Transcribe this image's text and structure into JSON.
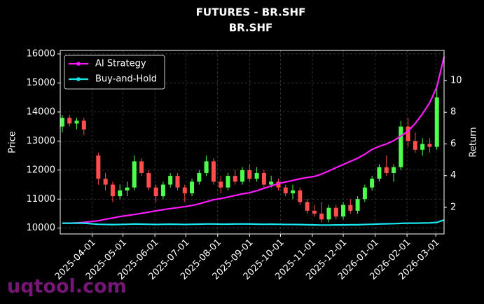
{
  "chart_data": {
    "type": "candlestick",
    "title": "FUTURES - BR.SHF",
    "subtitle": "BR.SHF",
    "ylabel": "Price",
    "y2label": "Return",
    "watermark": "uqtool.com",
    "xlim": [
      "2025-03-01",
      "2026-03-09"
    ],
    "xticks": [
      "2025-04-01",
      "2025-05-01",
      "2025-06-01",
      "2025-07-01",
      "2025-08-01",
      "2025-09-01",
      "2025-10-01",
      "2025-11-01",
      "2025-12-01",
      "2026-01-01",
      "2026-02-01",
      "2026-03-01"
    ],
    "ylim": [
      9800,
      16120
    ],
    "yticks": [
      10000,
      11000,
      12000,
      13000,
      14000,
      15000,
      16000
    ],
    "y2lim": [
      0.32,
      11.9
    ],
    "y2ticks": [
      2,
      4,
      6,
      8,
      10
    ],
    "grid": true,
    "legend": "upper-left",
    "up_color": "#4cff4c",
    "down_color": "#ff4d4d",
    "candles": {
      "dates": [
        "2025-03-03",
        "2025-03-10",
        "2025-03-17",
        "2025-03-24",
        "2025-04-07",
        "2025-04-14",
        "2025-04-21",
        "2025-04-28",
        "2025-05-05",
        "2025-05-12",
        "2025-05-19",
        "2025-05-26",
        "2025-06-02",
        "2025-06-09",
        "2025-06-16",
        "2025-06-23",
        "2025-06-30",
        "2025-07-07",
        "2025-07-14",
        "2025-07-21",
        "2025-07-28",
        "2025-08-04",
        "2025-08-11",
        "2025-08-18",
        "2025-08-25",
        "2025-09-01",
        "2025-09-08",
        "2025-09-15",
        "2025-09-22",
        "2025-09-29",
        "2025-10-06",
        "2025-10-13",
        "2025-10-20",
        "2025-10-27",
        "2025-11-03",
        "2025-11-10",
        "2025-11-17",
        "2025-11-24",
        "2025-12-01",
        "2025-12-08",
        "2025-12-15",
        "2025-12-22",
        "2025-12-29",
        "2026-01-05",
        "2026-01-12",
        "2026-01-19",
        "2026-01-26",
        "2026-02-02",
        "2026-02-09",
        "2026-02-16",
        "2026-02-23",
        "2026-03-02"
      ],
      "open": [
        13500,
        13800,
        13600,
        13700,
        12500,
        11700,
        11500,
        11100,
        11300,
        11400,
        12300,
        11900,
        11400,
        11100,
        11500,
        11800,
        11400,
        11200,
        11600,
        11900,
        12300,
        11600,
        11400,
        11800,
        11600,
        12000,
        11700,
        11900,
        11500,
        11600,
        11400,
        11200,
        11300,
        10900,
        10600,
        10500,
        10300,
        10700,
        10400,
        10800,
        10600,
        11000,
        11400,
        11700,
        12100,
        11900,
        12100,
        13500,
        13000,
        12700,
        12900,
        12800
      ],
      "high": [
        13900,
        13900,
        13800,
        13800,
        12600,
        11900,
        11600,
        11500,
        11600,
        12500,
        12400,
        12000,
        11500,
        11600,
        11900,
        11900,
        11500,
        11700,
        12000,
        12500,
        12400,
        11800,
        11900,
        12000,
        12100,
        12200,
        12100,
        12000,
        11800,
        11700,
        11500,
        11500,
        11400,
        11000,
        10800,
        10900,
        10800,
        10800,
        10900,
        11000,
        11100,
        11500,
        11800,
        12200,
        12500,
        12200,
        13700,
        13800,
        13300,
        13100,
        13100,
        14800
      ],
      "low": [
        13300,
        13500,
        13400,
        13200,
        11500,
        11300,
        10900,
        11000,
        11100,
        11300,
        11800,
        11300,
        10900,
        11000,
        11400,
        11300,
        10900,
        11100,
        11500,
        11800,
        11500,
        11200,
        11300,
        11500,
        11500,
        11600,
        11600,
        11400,
        11400,
        11300,
        11100,
        11000,
        10800,
        10500,
        10400,
        10200,
        10200,
        10300,
        10300,
        10500,
        10500,
        10900,
        11300,
        11600,
        11800,
        11600,
        12000,
        12800,
        12600,
        12500,
        12600,
        12700
      ],
      "close": [
        13800,
        13600,
        13700,
        13400,
        11700,
        11500,
        11100,
        11300,
        11400,
        12300,
        11900,
        11400,
        11100,
        11500,
        11800,
        11400,
        11200,
        11600,
        11900,
        12300,
        11600,
        11400,
        11800,
        11600,
        12000,
        11700,
        11900,
        11500,
        11600,
        11400,
        11200,
        11300,
        10900,
        10600,
        10500,
        10300,
        10700,
        10400,
        10800,
        10600,
        11000,
        11400,
        11700,
        12100,
        11900,
        12100,
        13500,
        13000,
        12700,
        12900,
        12800,
        14500
      ]
    },
    "x": [
      "2025-03-03",
      "2025-03-10",
      "2025-03-17",
      "2025-03-24",
      "2025-04-07",
      "2025-04-14",
      "2025-04-21",
      "2025-04-28",
      "2025-05-05",
      "2025-05-12",
      "2025-05-19",
      "2025-05-26",
      "2025-06-02",
      "2025-06-09",
      "2025-06-16",
      "2025-06-23",
      "2025-06-30",
      "2025-07-07",
      "2025-07-14",
      "2025-07-21",
      "2025-07-28",
      "2025-08-04",
      "2025-08-11",
      "2025-08-18",
      "2025-08-25",
      "2025-09-01",
      "2025-09-08",
      "2025-09-15",
      "2025-09-22",
      "2025-09-29",
      "2025-10-06",
      "2025-10-13",
      "2025-10-20",
      "2025-10-27",
      "2025-11-03",
      "2025-11-10",
      "2025-11-17",
      "2025-11-24",
      "2025-12-01",
      "2025-12-08",
      "2025-12-15",
      "2025-12-22",
      "2025-12-29",
      "2026-01-05",
      "2026-01-12",
      "2026-01-19",
      "2026-01-26",
      "2026-02-02",
      "2026-02-09",
      "2026-02-16",
      "2026-02-23",
      "2026-03-02",
      "2026-03-09"
    ],
    "series": [
      {
        "name": "AI Strategy",
        "color": "#ff1aff",
        "axis": "y2",
        "values": [
          1.0,
          1.0,
          1.02,
          1.05,
          1.15,
          1.25,
          1.33,
          1.42,
          1.48,
          1.55,
          1.62,
          1.7,
          1.78,
          1.85,
          1.92,
          1.98,
          2.04,
          2.12,
          2.22,
          2.35,
          2.48,
          2.55,
          2.65,
          2.75,
          2.85,
          2.92,
          3.05,
          3.2,
          3.35,
          3.5,
          3.6,
          3.7,
          3.8,
          3.88,
          3.95,
          4.1,
          4.3,
          4.5,
          4.7,
          4.9,
          5.1,
          5.35,
          5.65,
          5.85,
          6.0,
          6.2,
          6.5,
          6.8,
          7.3,
          7.9,
          8.6,
          9.6,
          11.5
        ]
      },
      {
        "name": "Buy-and-Hold",
        "color": "#1ae6f0",
        "axis": "y2",
        "values": [
          1.0,
          1.0,
          1.0,
          1.0,
          0.93,
          0.92,
          0.91,
          0.92,
          0.93,
          0.95,
          0.94,
          0.93,
          0.92,
          0.93,
          0.94,
          0.93,
          0.92,
          0.93,
          0.94,
          0.95,
          0.95,
          0.94,
          0.94,
          0.95,
          0.95,
          0.95,
          0.94,
          0.93,
          0.94,
          0.93,
          0.92,
          0.92,
          0.91,
          0.9,
          0.89,
          0.88,
          0.88,
          0.89,
          0.89,
          0.9,
          0.9,
          0.92,
          0.93,
          0.95,
          0.96,
          0.97,
          0.99,
          1.0,
          1.0,
          1.01,
          1.02,
          1.05,
          1.2
        ]
      }
    ]
  }
}
